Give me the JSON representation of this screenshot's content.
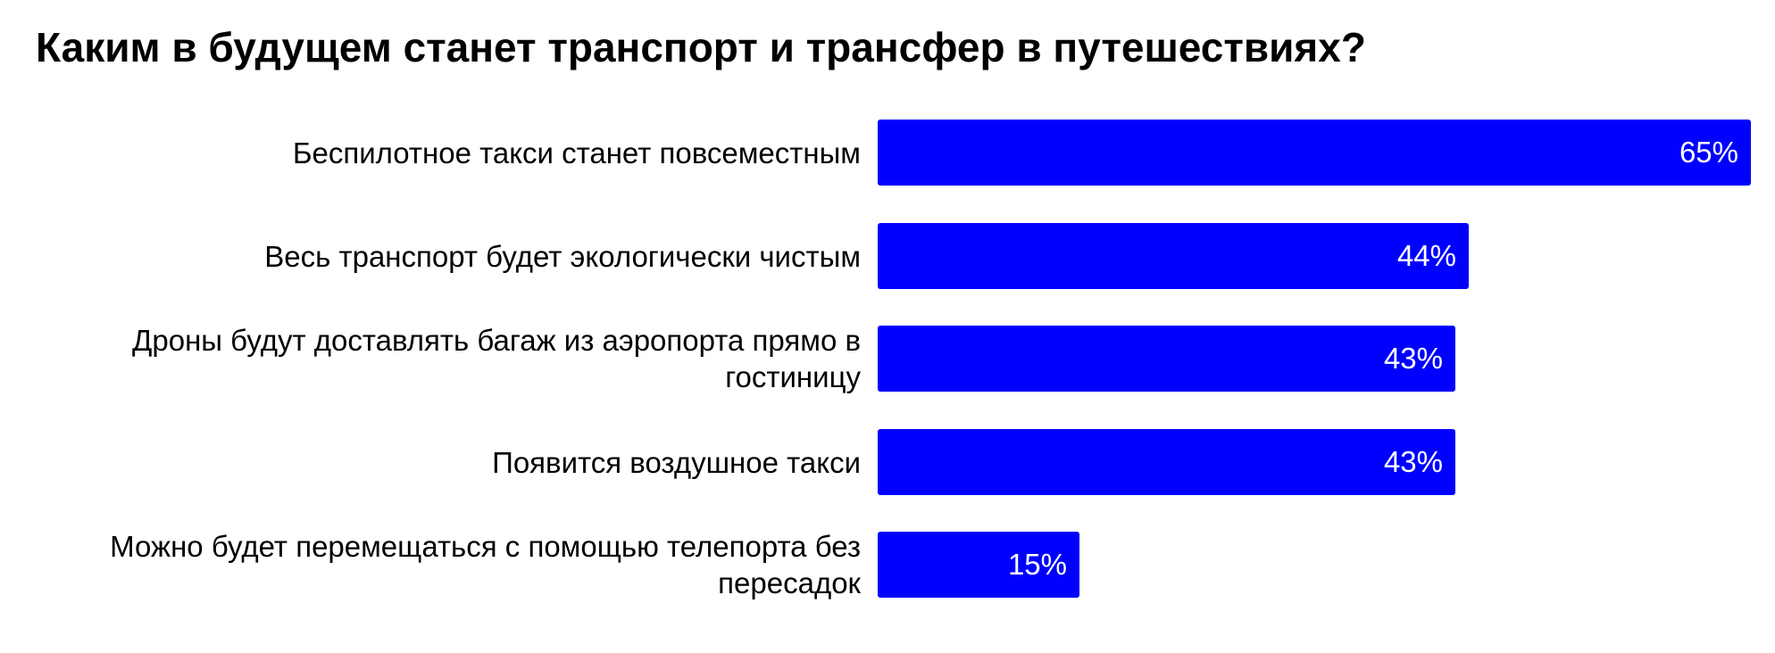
{
  "chart_data": {
    "type": "bar",
    "orientation": "horizontal",
    "title": "Каким в будущем станет транспорт и трансфер в путешествиях?",
    "xlabel": "",
    "ylabel": "",
    "xlim": [
      0,
      65
    ],
    "grid": false,
    "bar_color": "#0000ff",
    "categories": [
      "Беспилотное такси станет повсеместным",
      "Весь транспорт будет экологически чистым",
      "Дроны будут доставлять багаж из аэропорта прямо в гостиницу",
      "Появится воздушное такси",
      "Можно будет перемещаться с помощью телепорта без пересадок"
    ],
    "values": [
      65,
      44,
      43,
      43,
      15
    ],
    "value_labels": [
      "65%",
      "44%",
      "43%",
      "43%",
      "15%"
    ]
  }
}
